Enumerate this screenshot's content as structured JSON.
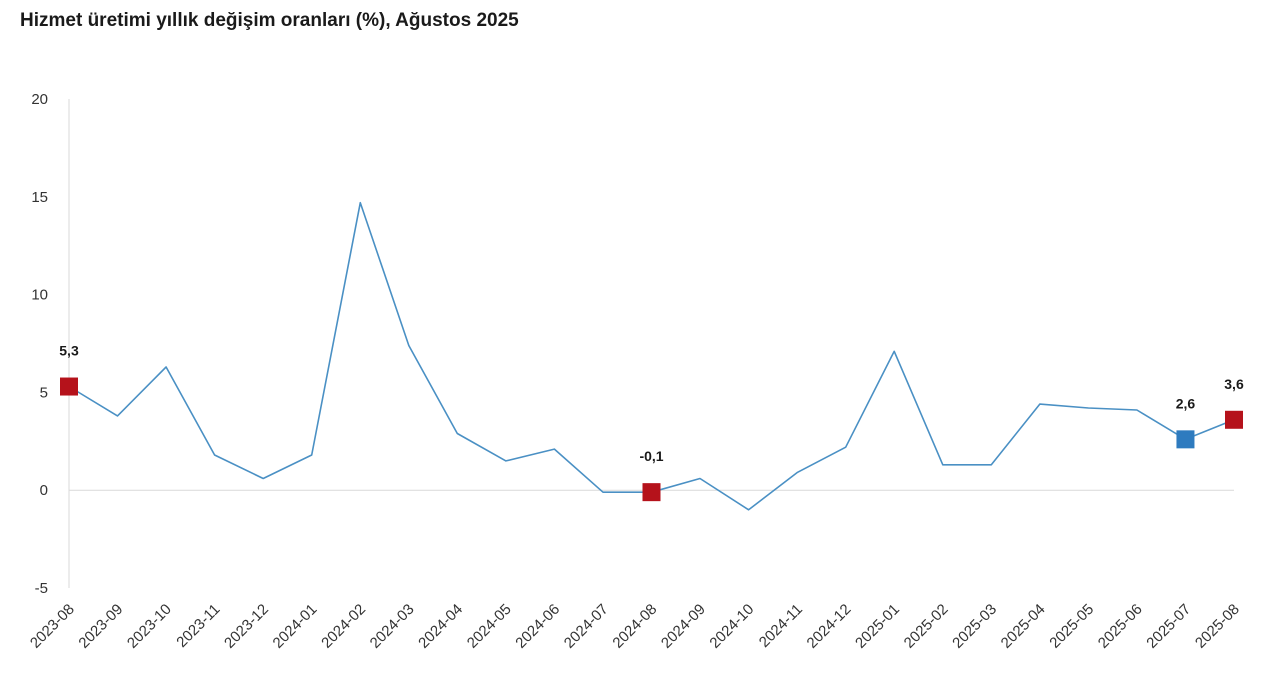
{
  "chart_data": {
    "type": "line",
    "title": "Hizmet üretimi yıllık değişim oranları (%), Ağustos 2025",
    "xlabel": "",
    "ylabel": "",
    "ylim": [
      -5,
      20
    ],
    "yticks": [
      -5,
      0,
      5,
      10,
      15,
      20
    ],
    "grid": false,
    "categories": [
      "2023-08",
      "2023-09",
      "2023-10",
      "2023-11",
      "2023-12",
      "2024-01",
      "2024-02",
      "2024-03",
      "2024-04",
      "2024-05",
      "2024-06",
      "2024-07",
      "2024-08",
      "2024-09",
      "2024-10",
      "2024-11",
      "2024-12",
      "2025-01",
      "2025-02",
      "2025-03",
      "2025-04",
      "2025-05",
      "2025-06",
      "2025-07",
      "2025-08"
    ],
    "series": [
      {
        "values": [
          5.3,
          3.8,
          6.3,
          1.8,
          0.6,
          1.8,
          14.7,
          7.4,
          2.9,
          1.5,
          2.1,
          -0.1,
          -0.1,
          0.6,
          -1.0,
          0.9,
          2.2,
          7.1,
          1.3,
          1.3,
          4.4,
          4.2,
          4.1,
          2.6,
          3.6
        ],
        "color": "#4a90c4"
      }
    ],
    "highlighted_points": [
      {
        "index": 0,
        "label": "5,3",
        "color": "#b5121b"
      },
      {
        "index": 12,
        "label": "-0,1",
        "color": "#b5121b"
      },
      {
        "index": 23,
        "label": "2,6",
        "color": "#2e7bbf"
      },
      {
        "index": 24,
        "label": "3,6",
        "color": "#b5121b"
      }
    ]
  }
}
